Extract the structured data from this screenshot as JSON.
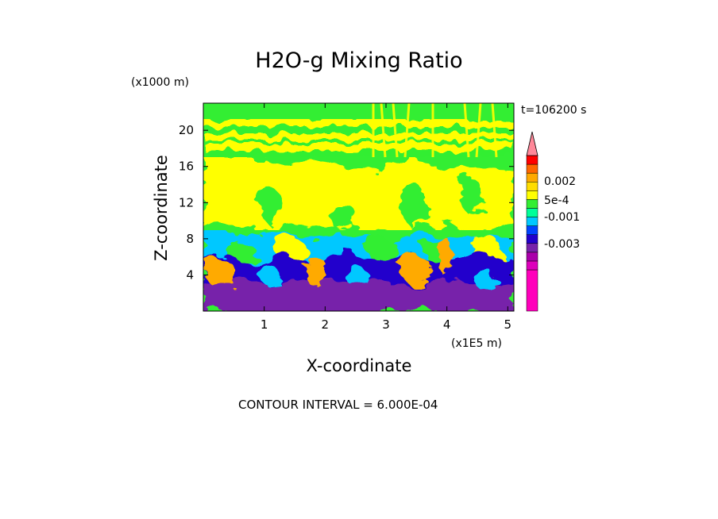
{
  "chart_data": {
    "type": "heatmap",
    "title": "H2O-g Mixing Ratio",
    "xlabel": "X-coordinate",
    "ylabel": "Z-coordinate",
    "x_unit": "(x1E5 m)",
    "y_unit": "(x1000 m)",
    "time_label": "t=106200 s",
    "contour_interval_text": "CONTOUR INTERVAL = 6.000E-04",
    "xlim": [
      0,
      5.1
    ],
    "ylim": [
      0,
      23
    ],
    "x_ticks": [
      1,
      2,
      3,
      4,
      5
    ],
    "y_ticks": [
      4,
      8,
      12,
      16,
      20
    ],
    "colorbar": {
      "colors": [
        "#ff00bb",
        "#dd00bb",
        "#aa00aa",
        "#7722aa",
        "#2200cc",
        "#0044ff",
        "#00c8ff",
        "#00ff99",
        "#33ee33",
        "#ffff00",
        "#ffdd00",
        "#ffaa00",
        "#ff6600",
        "#ff0000",
        "#ff8899"
      ],
      "labels": [
        "-0.003",
        "-0.001",
        "5e-4",
        "0.002"
      ]
    },
    "layers": [
      {
        "z": [
          0,
          2
        ],
        "level": "-0.003"
      },
      {
        "z": [
          2,
          4
        ],
        "level": "-0.001"
      },
      {
        "z": [
          4,
          7
        ],
        "level": "mixed"
      },
      {
        "z": [
          7,
          9
        ],
        "level": "-0.001"
      },
      {
        "z": [
          9,
          17
        ],
        "level": "5e-4"
      },
      {
        "z": [
          17,
          23
        ],
        "level": "mixed"
      }
    ]
  }
}
